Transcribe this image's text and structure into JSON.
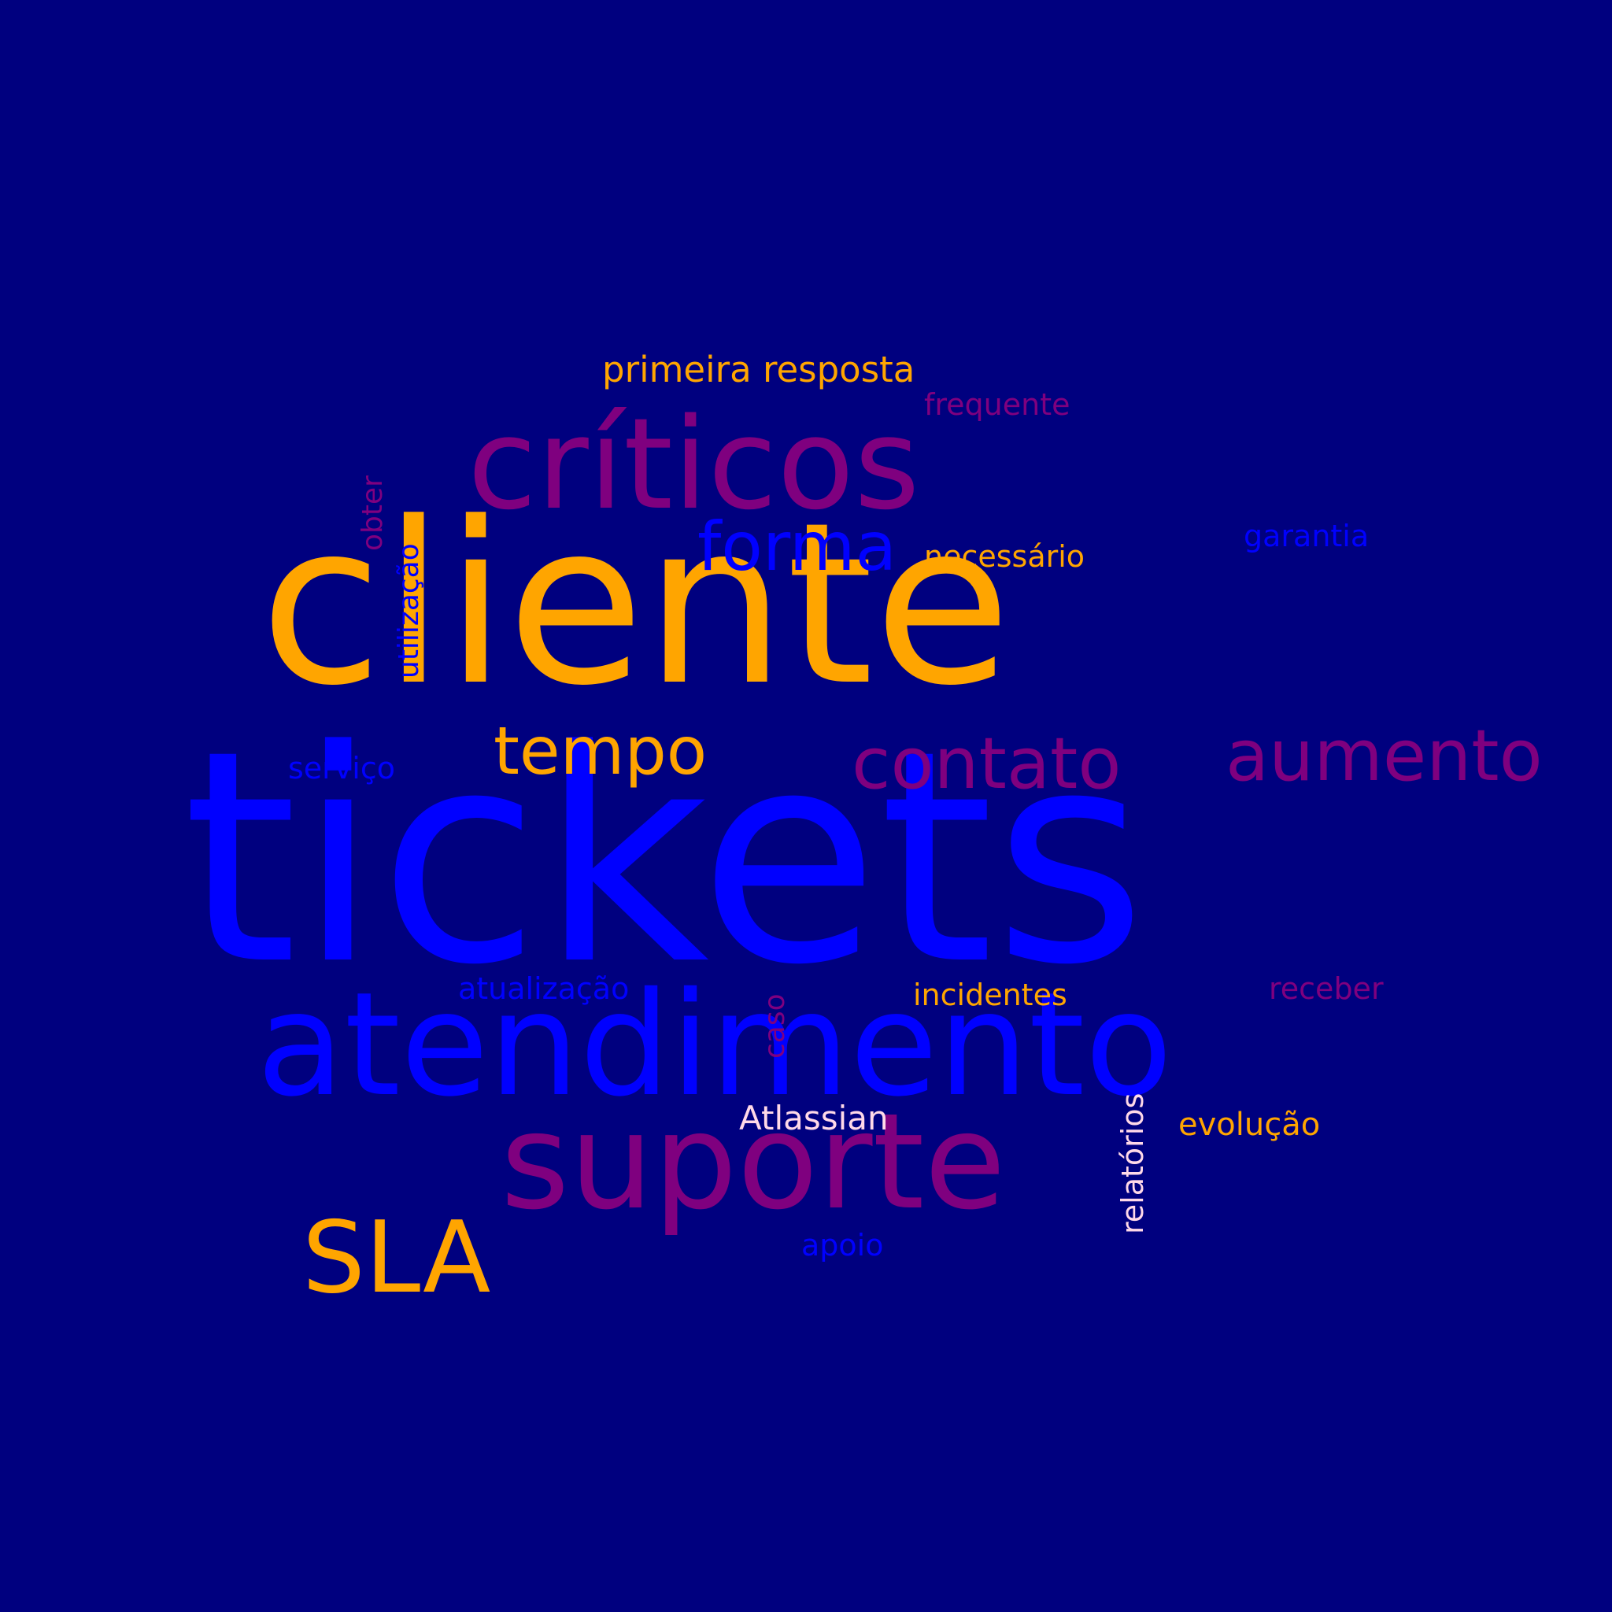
{
  "cloud": {
    "background_color": "#00007f",
    "palette": {
      "orange": "#ffa500",
      "blue": "#0000ff",
      "purple": "#7f007f",
      "pink": "#ffd9e8"
    },
    "words": {
      "tickets": "tickets",
      "cliente": "cliente",
      "atendimento": "atendimento",
      "suporte": "suporte",
      "criticos": "críticos",
      "SLA": "SLA",
      "contato": "contato",
      "aumento": "aumento",
      "tempo": "tempo",
      "forma": "forma",
      "primeira_resposta": "primeira resposta",
      "necessario": "necessário",
      "frequente": "frequente",
      "garantia": "garantia",
      "incidentes": "incidentes",
      "receber": "receber",
      "atualizacao": "atualização",
      "servico": "serviço",
      "Atlassian": "Atlassian",
      "evolucao": "evolução",
      "apoio": "apoio",
      "obter": "obter",
      "utilizacao": "utilização",
      "caso": "caso",
      "relatorios": "relatórios"
    }
  }
}
